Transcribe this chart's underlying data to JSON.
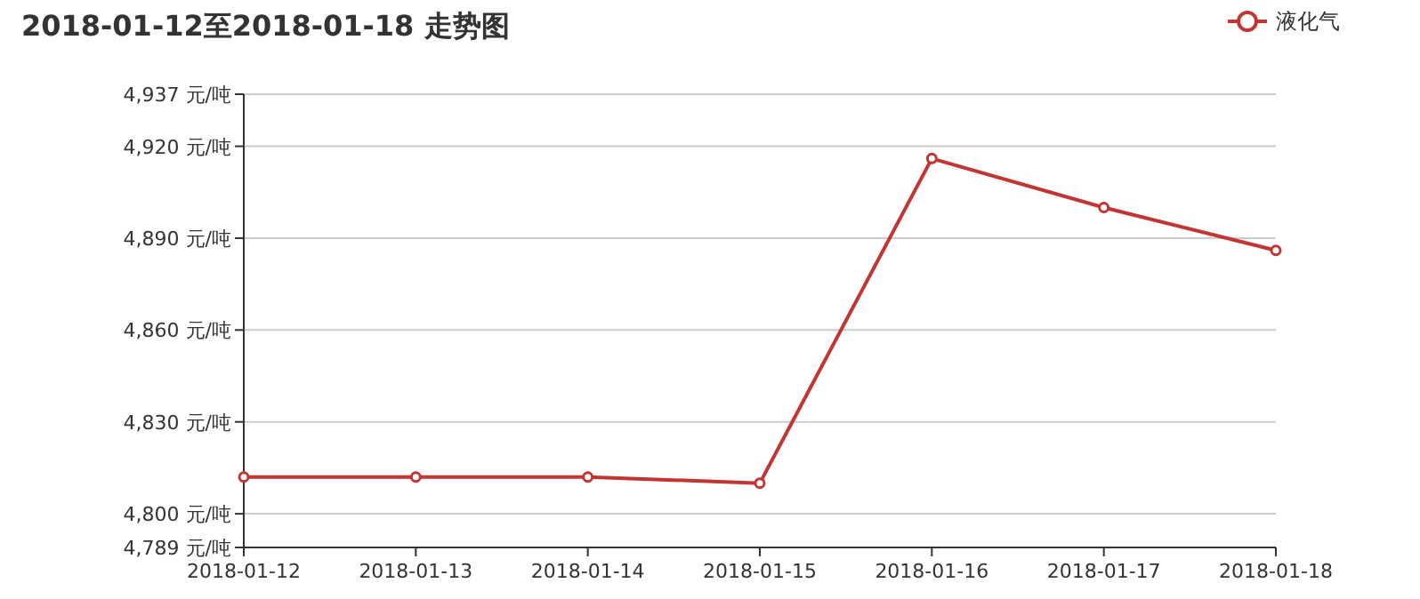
{
  "chart_data": {
    "type": "line",
    "title": "2018-01-12至2018-01-18 走势图",
    "categories": [
      "2018-01-12",
      "2018-01-13",
      "2018-01-14",
      "2018-01-15",
      "2018-01-16",
      "2018-01-17",
      "2018-01-18"
    ],
    "series": [
      {
        "name": "液化气",
        "color": "#c23531",
        "values": [
          4812,
          4812,
          4812,
          4810,
          4916,
          4900,
          4886
        ]
      }
    ],
    "ylim": [
      4789,
      4937
    ],
    "yticks": [
      {
        "value": 4789,
        "label": "4,789 元/吨"
      },
      {
        "value": 4800,
        "label": "4,800 元/吨"
      },
      {
        "value": 4830,
        "label": "4,830 元/吨"
      },
      {
        "value": 4860,
        "label": "4,860 元/吨"
      },
      {
        "value": 4890,
        "label": "4,890 元/吨"
      },
      {
        "value": 4920,
        "label": "4,920 元/吨"
      },
      {
        "value": 4937,
        "label": "4,937 元/吨"
      }
    ],
    "grid": "y",
    "legend": "top right",
    "marker": "circle",
    "line_style": "solid"
  }
}
